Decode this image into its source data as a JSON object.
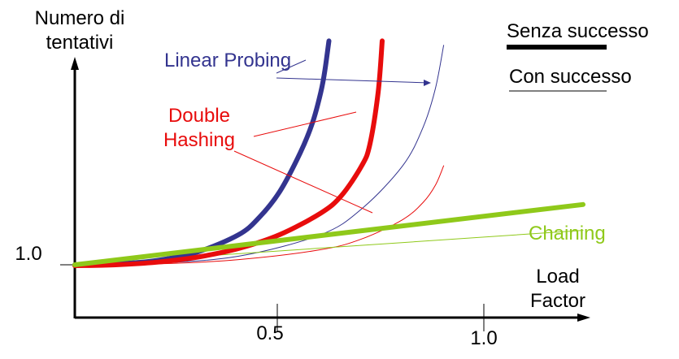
{
  "chart_data": {
    "type": "line",
    "ylabel_lines": [
      "Numero di",
      "tentativi"
    ],
    "xlabel_lines": [
      "Load",
      "Factor"
    ],
    "x_ticks": [
      {
        "value": 0.5,
        "label": "0.5"
      },
      {
        "value": 1.0,
        "label": "1.0"
      }
    ],
    "y_ticks": [
      {
        "value": 1.0,
        "label": "1.0"
      }
    ],
    "legend": {
      "placement": "top-right",
      "entries": [
        {
          "label": "Senza successo",
          "style": "thick"
        },
        {
          "label": "Con successo",
          "style": "thin"
        }
      ]
    },
    "series": [
      {
        "name": "Linear Probing",
        "color": "#33348f",
        "variant": "unsuccessful",
        "points": [
          [
            0,
            1.0
          ],
          [
            0.1,
            1.02
          ],
          [
            0.2,
            1.1
          ],
          [
            0.3,
            1.3
          ],
          [
            0.4,
            1.7
          ],
          [
            0.45,
            2.1
          ],
          [
            0.5,
            2.7
          ],
          [
            0.55,
            3.6
          ],
          [
            0.58,
            4.3
          ],
          [
            0.6,
            5.0
          ],
          [
            0.61,
            5.5
          ],
          [
            0.62,
            6.2
          ]
        ]
      },
      {
        "name": "Double Hashing",
        "color": "#e80c0c",
        "variant": "unsuccessful",
        "points": [
          [
            0,
            0.98
          ],
          [
            0.1,
            1.0
          ],
          [
            0.2,
            1.06
          ],
          [
            0.3,
            1.18
          ],
          [
            0.4,
            1.38
          ],
          [
            0.5,
            1.7
          ],
          [
            0.6,
            2.2
          ],
          [
            0.65,
            2.6
          ],
          [
            0.7,
            3.3
          ],
          [
            0.72,
            3.8
          ],
          [
            0.74,
            5.0
          ],
          [
            0.75,
            6.2
          ]
        ]
      },
      {
        "name": "Linear Probing",
        "color": "#33348f",
        "variant": "successful",
        "points": [
          [
            0,
            1.0
          ],
          [
            0.2,
            1.04
          ],
          [
            0.4,
            1.2
          ],
          [
            0.6,
            1.7
          ],
          [
            0.7,
            2.3
          ],
          [
            0.8,
            3.3
          ],
          [
            0.85,
            4.2
          ],
          [
            0.88,
            5.1
          ],
          [
            0.9,
            6.1
          ]
        ]
      },
      {
        "name": "Double Hashing",
        "color": "#e80c0c",
        "variant": "successful",
        "points": [
          [
            0,
            1.0
          ],
          [
            0.2,
            1.02
          ],
          [
            0.4,
            1.12
          ],
          [
            0.6,
            1.35
          ],
          [
            0.7,
            1.6
          ],
          [
            0.8,
            2.05
          ],
          [
            0.85,
            2.45
          ],
          [
            0.88,
            2.85
          ],
          [
            0.9,
            3.3
          ]
        ]
      },
      {
        "name": "Chaining",
        "color": "#8fc91a",
        "variant": "unsuccessful",
        "points": [
          [
            0,
            1.0
          ],
          [
            1.24,
            2.4
          ]
        ]
      },
      {
        "name": "Chaining",
        "color": "#8fc91a",
        "variant": "successful",
        "points": [
          [
            0,
            1.0
          ],
          [
            1.24,
            1.8
          ]
        ]
      }
    ],
    "annotations": [
      {
        "text": "Linear Probing",
        "color": "#33348f"
      },
      {
        "text_lines": [
          "Double",
          "Hashing"
        ],
        "color": "#e80c0c"
      },
      {
        "text": "Chaining",
        "color": "#8fc91a"
      }
    ]
  }
}
